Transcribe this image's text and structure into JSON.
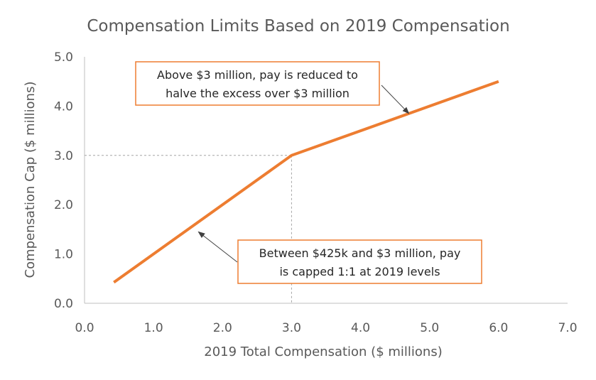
{
  "chart_data": {
    "type": "line",
    "title": "Compensation Limits Based on 2019 Compensation",
    "xlabel": "2019 Total Compensation ($ millions)",
    "ylabel": "Compensation Cap ($ millions)",
    "xlim": [
      0,
      7
    ],
    "ylim": [
      0,
      5
    ],
    "x_ticks": [
      "0.0",
      "1.0",
      "2.0",
      "3.0",
      "4.0",
      "5.0",
      "6.0",
      "7.0"
    ],
    "y_ticks": [
      "0.0",
      "1.0",
      "2.0",
      "3.0",
      "4.0",
      "5.0"
    ],
    "grid": false,
    "series": [
      {
        "color": "#ED7D31",
        "points": [
          {
            "x": 0.425,
            "y": 0.425
          },
          {
            "x": 3.0,
            "y": 3.0
          },
          {
            "x": 6.0,
            "y": 4.5
          }
        ]
      }
    ],
    "reference_lines": {
      "x": 3.0,
      "y": 3.0,
      "style": "dashed"
    },
    "annotations": [
      {
        "lines": [
          "Above $3 million, pay is reduced to",
          "halve the excess over $3 million"
        ],
        "arrow_to": {
          "x": 4.7,
          "y": 3.85
        }
      },
      {
        "lines": [
          "Between $425k and $3 million, pay",
          "is capped 1:1 at 2019 levels"
        ],
        "arrow_to": {
          "x": 1.65,
          "y": 1.45
        }
      }
    ],
    "colors": {
      "line": "#ED7D31",
      "annotation_border": "#ED7D31",
      "axis": "#BFBFBF",
      "text": "#595959"
    }
  }
}
